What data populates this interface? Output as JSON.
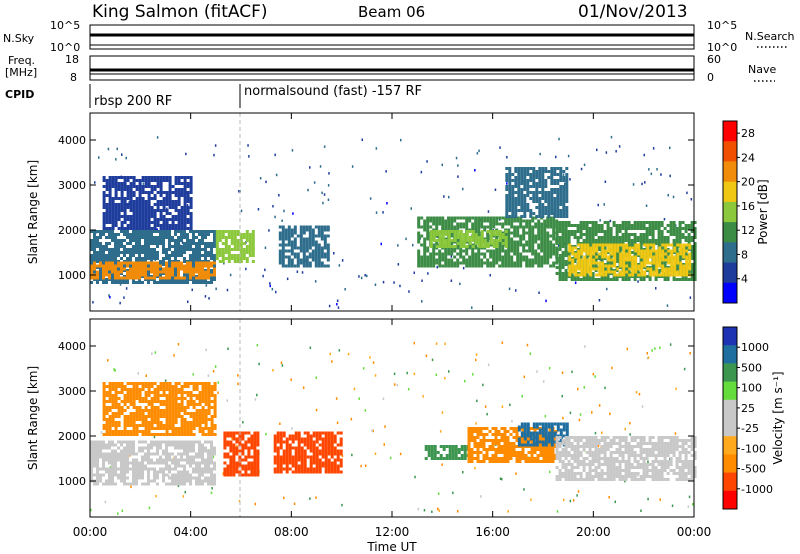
{
  "header": {
    "title": "King Salmon (fitACF)",
    "beam": "Beam 06",
    "date": "01/Nov/2013"
  },
  "aux_panels": {
    "nsky": {
      "left_label": "N.Sky",
      "right_label": "N.Search",
      "tick_top": "10^5",
      "tick_bottom": "10^0",
      "right_tick_top": "10^5",
      "right_tick_bottom": "10^0"
    },
    "freq": {
      "left_label_1": "Freq.",
      "left_label_2": "[MHz]",
      "tick_top": "18",
      "tick_bottom": "8",
      "right_label": "Nave",
      "right_tick_top": "60",
      "right_tick_bottom": "0"
    },
    "cpid": {
      "label": "CPID",
      "mode_1": "rbsp 200 RF",
      "mode_2": "normalsound (fast) -157 RF"
    }
  },
  "colors": {
    "power_scale": [
      "#0000ff",
      "#1e3c9c",
      "#2e6e8c",
      "#3c8c46",
      "#8cc83c",
      "#f0c814",
      "#f08c0a",
      "#f05000",
      "#ff0000"
    ],
    "velocity_scale": [
      "#ff0000",
      "#ff4600",
      "#ff8c00",
      "#ffaa1e",
      "#c8c8c8",
      "#c8c8c8",
      "#64dc3c",
      "#3c9650",
      "#1e6ea0",
      "#1e32b4"
    ]
  },
  "chart_data": [
    {
      "type": "heatmap",
      "name": "power",
      "xlabel": "",
      "ylabel": "Slant Range [km]",
      "xlim": [
        0,
        24
      ],
      "ylim": [
        200,
        4600
      ],
      "yticks": [
        1000,
        2000,
        3000,
        4000
      ],
      "colorbar": {
        "label": "Power [dB]",
        "ticks": [
          "4",
          "8",
          "12",
          "16",
          "20",
          "24",
          "28"
        ],
        "range": [
          0,
          30
        ]
      },
      "regions": [
        {
          "t0": 0.0,
          "t1": 5.0,
          "r0": 800,
          "r1": 2000,
          "value": 8
        },
        {
          "t0": 0.0,
          "t1": 5.0,
          "r0": 950,
          "r1": 1300,
          "value": 22
        },
        {
          "t0": 0.5,
          "t1": 4.0,
          "r0": 2000,
          "r1": 3200,
          "value": 6
        },
        {
          "t0": 5.0,
          "t1": 6.5,
          "r0": 1300,
          "r1": 2000,
          "value": 14
        },
        {
          "t0": 7.5,
          "t1": 9.5,
          "r0": 1200,
          "r1": 2100,
          "value": 9
        },
        {
          "t0": 13.0,
          "t1": 18.5,
          "r0": 1200,
          "r1": 2300,
          "value": 12
        },
        {
          "t0": 13.5,
          "t1": 16.5,
          "r0": 1600,
          "r1": 2000,
          "value": 15
        },
        {
          "t0": 16.5,
          "t1": 19.0,
          "r0": 2300,
          "r1": 3400,
          "value": 7
        },
        {
          "t0": 18.5,
          "t1": 24.0,
          "r0": 900,
          "r1": 2200,
          "value": 12
        },
        {
          "t0": 19.0,
          "t1": 23.8,
          "r0": 1000,
          "r1": 1700,
          "value": 18
        }
      ]
    },
    {
      "type": "heatmap",
      "name": "velocity",
      "xlabel": "Time UT",
      "ylabel": "Slant Range [km]",
      "xlim": [
        0,
        24
      ],
      "ylim": [
        200,
        4600
      ],
      "yticks": [
        1000,
        2000,
        3000,
        4000
      ],
      "xticks": [
        "00:00",
        "04:00",
        "08:00",
        "12:00",
        "16:00",
        "20:00",
        "00:00"
      ],
      "colorbar": {
        "label": "Velocity [m s⁻¹]",
        "ticks": [
          "1000",
          "500",
          "100",
          "25",
          "-25",
          "-100",
          "-500",
          "-1000"
        ]
      },
      "regions": [
        {
          "t0": 0.0,
          "t1": 5.0,
          "r0": 900,
          "r1": 1900,
          "value": 0
        },
        {
          "t0": 0.5,
          "t1": 5.0,
          "r0": 2000,
          "r1": 3200,
          "value": -100
        },
        {
          "t0": 5.3,
          "t1": 6.7,
          "r0": 1100,
          "r1": 2100,
          "value": -700
        },
        {
          "t0": 7.3,
          "t1": 10.0,
          "r0": 1200,
          "r1": 2100,
          "value": -500
        },
        {
          "t0": 13.3,
          "t1": 15.0,
          "r0": 1500,
          "r1": 1800,
          "value": 200
        },
        {
          "t0": 15.0,
          "t1": 18.5,
          "r0": 1400,
          "r1": 2200,
          "value": -150
        },
        {
          "t0": 17.0,
          "t1": 19.0,
          "r0": 1800,
          "r1": 2300,
          "value": 600
        },
        {
          "t0": 18.5,
          "t1": 24.0,
          "r0": 1000,
          "r1": 2000,
          "value": 0
        }
      ]
    }
  ]
}
